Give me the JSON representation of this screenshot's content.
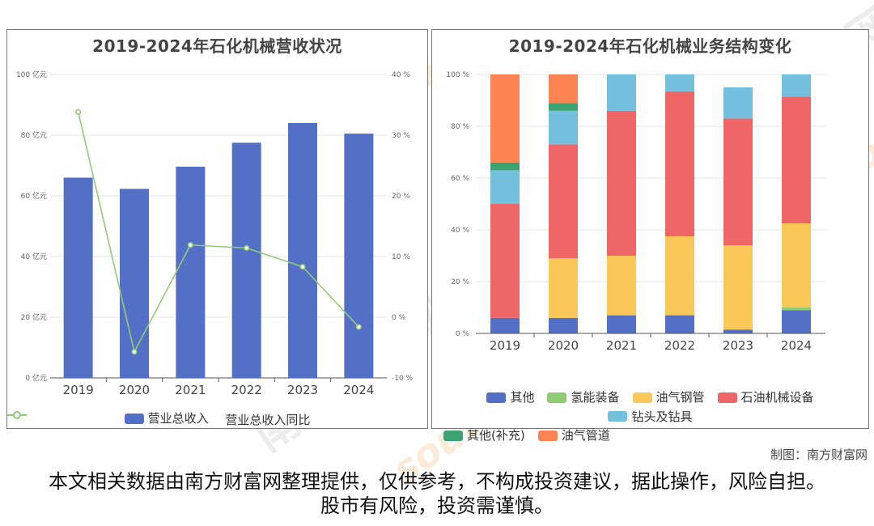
{
  "credit": "制图：南方财富网",
  "disclaimer": "本文相关数据由南方财富网整理提供，仅供参考，不构成投资建议，据此操作，风险自担。股市有风险，投资需谨慎。",
  "watermark": {
    "text": "南方财富网",
    "url_text": "southmoney.com"
  },
  "colors": {
    "revenue_bar": "#5470c6",
    "growth_line": "#91cc75",
    "其他": "#5470c6",
    "氢能装备": "#91cc75",
    "油气钢管": "#fac858",
    "石油机械设备": "#ee6666",
    "钻头及钻具": "#73c0de",
    "其他(补充)": "#3ba272",
    "油气管道": "#fc8452"
  },
  "chart_data": [
    {
      "type": "bar",
      "title": "2019-2024年石化机械营收状况",
      "categories": [
        "2019",
        "2020",
        "2021",
        "2022",
        "2023",
        "2024"
      ],
      "series": [
        {
          "name": "营业总收入",
          "type": "bar",
          "axis": "left",
          "values": [
            66,
            62.3,
            69.6,
            77.5,
            84,
            80.5
          ]
        },
        {
          "name": "营业总收入同比",
          "type": "line",
          "axis": "right",
          "values": [
            33.8,
            -5.7,
            11.9,
            11.4,
            8.3,
            -1.6
          ]
        }
      ],
      "y_left": {
        "ticks": [
          "0 亿元",
          "20 亿元",
          "40 亿元",
          "60 亿元",
          "80 亿元",
          "100 亿元"
        ],
        "ylim": [
          0,
          100
        ]
      },
      "y_right": {
        "ticks": [
          "-10 %",
          "0 %",
          "10 %",
          "20 %",
          "30 %",
          "40 %"
        ],
        "ylim": [
          -10,
          40
        ]
      },
      "grid": true,
      "legend_position": "bottom"
    },
    {
      "type": "bar",
      "stacked": true,
      "title": "2019-2024年石化机械业务结构变化",
      "categories": [
        "2019",
        "2020",
        "2021",
        "2022",
        "2023",
        "2024"
      ],
      "y_ticks": [
        "0 %",
        "20 %",
        "40 %",
        "60 %",
        "80 %",
        "100 %"
      ],
      "ylim": [
        0,
        100
      ],
      "series": [
        {
          "name": "其他",
          "values": [
            6,
            6,
            7,
            7,
            1.5,
            9
          ]
        },
        {
          "name": "氢能装备",
          "values": [
            0,
            0,
            0,
            0,
            0,
            1
          ]
        },
        {
          "name": "油气钢管",
          "values": [
            0,
            23,
            23,
            30.5,
            32.5,
            32.5
          ]
        },
        {
          "name": "石油机械设备",
          "values": [
            44,
            44,
            56,
            56,
            49,
            49
          ]
        },
        {
          "name": "钻头及钻具",
          "values": [
            13,
            13,
            14,
            6.5,
            12,
            8.5
          ]
        },
        {
          "name": "其他(补充)",
          "values": [
            3,
            3,
            0,
            0,
            0,
            0
          ]
        },
        {
          "name": "油气管道",
          "values": [
            34,
            11,
            0,
            0,
            0,
            0
          ]
        }
      ],
      "grid": true,
      "legend_position": "bottom"
    }
  ]
}
